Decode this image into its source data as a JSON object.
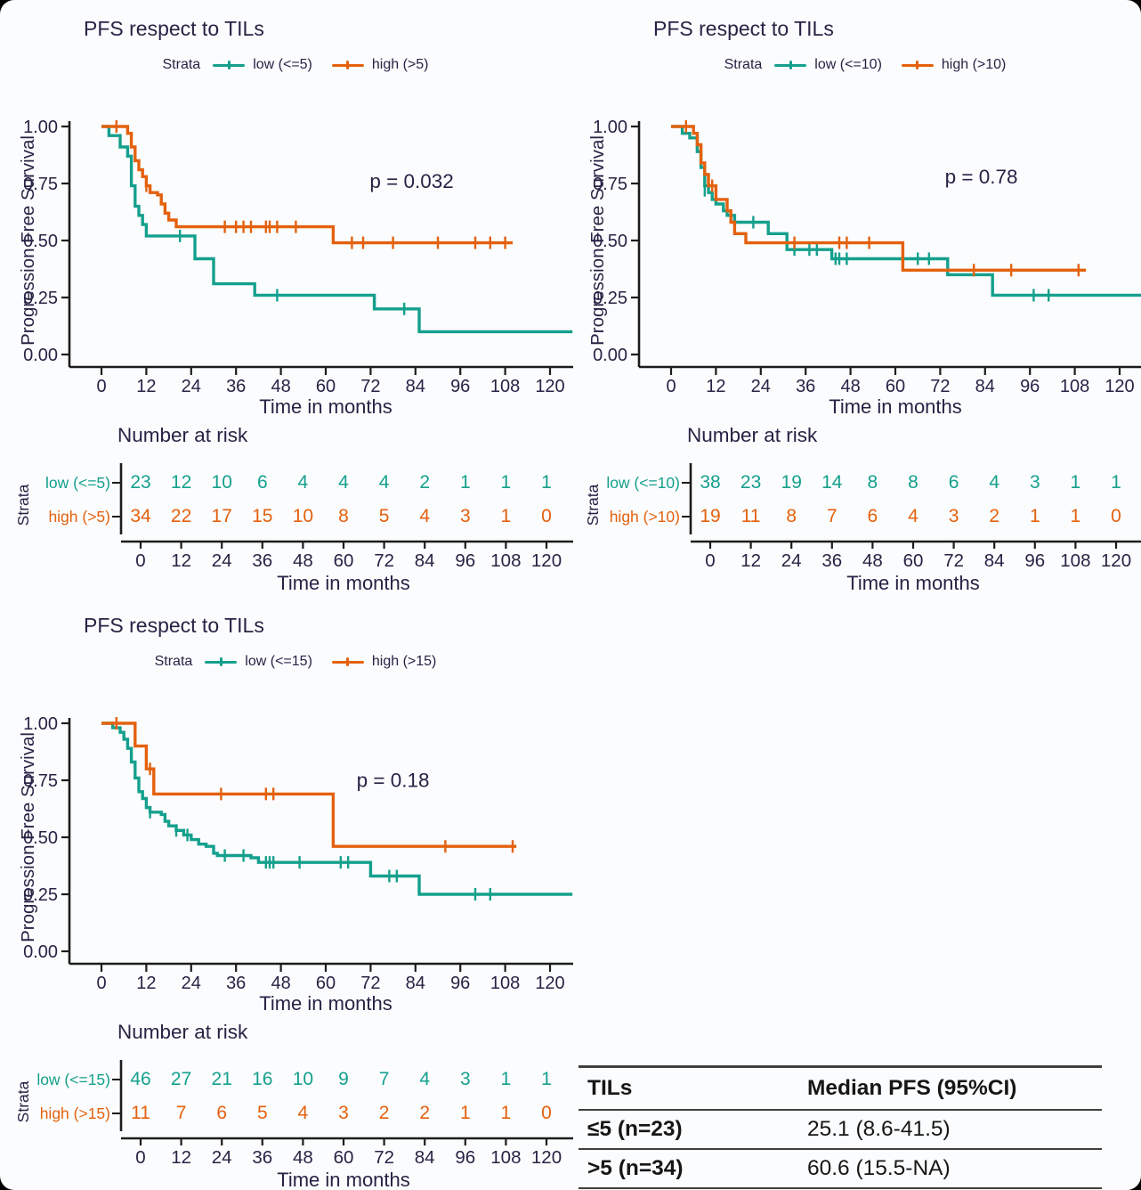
{
  "colors": {
    "low": "#14A08D",
    "high": "#E4610E",
    "text": "#2A2245",
    "axis": "#1C1C1C",
    "table_line": "#3F3F3F"
  },
  "shared": {
    "legend_title": "Strata",
    "risk_header": "Number at risk",
    "strata_axis_label": "Strata",
    "y_label": "Progression Free Survival",
    "x_label": "Time in months",
    "y_ticks": [
      "1.00",
      "0.75",
      "0.50",
      "0.25",
      "0.00"
    ],
    "y_tick_values": [
      1,
      0.75,
      0.5,
      0.25,
      0
    ],
    "x_ticks": [
      0,
      12,
      24,
      36,
      48,
      60,
      72,
      84,
      96,
      108,
      120
    ]
  },
  "chart_data": [
    {
      "type": "line",
      "title": "PFS respect to TILs",
      "p_label": "p = 0.032",
      "p_pos": [
        83,
        0.73
      ],
      "xlabel": "Time in months",
      "ylabel": "Progression Free Survival",
      "xlim": [
        0,
        126
      ],
      "ylim": [
        0,
        1.05
      ],
      "series": [
        {
          "name": "low (<=5)",
          "color_key": "low",
          "n": 23,
          "steps": [
            [
              0,
              1
            ],
            [
              2,
              0.96
            ],
            [
              5,
              0.91
            ],
            [
              7,
              0.87
            ],
            [
              8,
              0.74
            ],
            [
              9,
              0.65
            ],
            [
              10,
              0.61
            ],
            [
              11,
              0.57
            ],
            [
              12,
              0.52
            ],
            [
              24,
              0.52
            ],
            [
              25,
              0.42
            ],
            [
              30,
              0.31
            ],
            [
              41,
              0.26
            ],
            [
              72,
              0.26
            ],
            [
              73,
              0.2
            ],
            [
              84,
              0.2
            ],
            [
              85,
              0.1
            ],
            [
              126,
              0.1
            ]
          ],
          "censors": [
            [
              21,
              0.52
            ],
            [
              47,
              0.26
            ],
            [
              81,
              0.2
            ]
          ]
        },
        {
          "name": "high (>5)",
          "color_key": "high",
          "n": 34,
          "steps": [
            [
              0,
              1
            ],
            [
              7,
              0.97
            ],
            [
              8,
              0.91
            ],
            [
              9,
              0.85
            ],
            [
              10,
              0.81
            ],
            [
              11,
              0.78
            ],
            [
              12,
              0.74
            ],
            [
              13,
              0.71
            ],
            [
              15,
              0.7
            ],
            [
              16,
              0.66
            ],
            [
              17,
              0.62
            ],
            [
              18,
              0.59
            ],
            [
              20,
              0.56
            ],
            [
              61,
              0.56
            ],
            [
              62,
              0.49
            ],
            [
              110,
              0.49
            ]
          ],
          "censors": [
            [
              4,
              1
            ],
            [
              12,
              0.74
            ],
            [
              33,
              0.56
            ],
            [
              36,
              0.56
            ],
            [
              38,
              0.56
            ],
            [
              40,
              0.56
            ],
            [
              44,
              0.56
            ],
            [
              45,
              0.56
            ],
            [
              47,
              0.56
            ],
            [
              52,
              0.56
            ],
            [
              67,
              0.49
            ],
            [
              70,
              0.49
            ],
            [
              78,
              0.49
            ],
            [
              90,
              0.49
            ],
            [
              100,
              0.49
            ],
            [
              104,
              0.49
            ],
            [
              108,
              0.49
            ]
          ]
        }
      ],
      "risk_rows": [
        {
          "label": "low (<=5)",
          "color_key": "low",
          "values": [
            23,
            12,
            10,
            6,
            4,
            4,
            4,
            2,
            1,
            1,
            1
          ]
        },
        {
          "label": "high (>5)",
          "color_key": "high",
          "values": [
            34,
            22,
            17,
            15,
            10,
            8,
            5,
            4,
            3,
            1,
            0
          ]
        }
      ]
    },
    {
      "type": "line",
      "title": "PFS respect to TILs",
      "p_label": "p = 0.78",
      "p_pos": [
        83,
        0.75
      ],
      "xlabel": "Time in months",
      "ylabel": "Progression Free Survival",
      "xlim": [
        0,
        126
      ],
      "ylim": [
        0,
        1.05
      ],
      "series": [
        {
          "name": "low (<=10)",
          "color_key": "low",
          "n": 38,
          "steps": [
            [
              0,
              1
            ],
            [
              3,
              0.97
            ],
            [
              5,
              0.95
            ],
            [
              7,
              0.89
            ],
            [
              8,
              0.82
            ],
            [
              9,
              0.74
            ],
            [
              10,
              0.71
            ],
            [
              11,
              0.68
            ],
            [
              12,
              0.66
            ],
            [
              14,
              0.63
            ],
            [
              15,
              0.61
            ],
            [
              17,
              0.58
            ],
            [
              25,
              0.58
            ],
            [
              26,
              0.53
            ],
            [
              30,
              0.53
            ],
            [
              31,
              0.46
            ],
            [
              42,
              0.46
            ],
            [
              43,
              0.42
            ],
            [
              73,
              0.42
            ],
            [
              74,
              0.35
            ],
            [
              85,
              0.35
            ],
            [
              86,
              0.26
            ],
            [
              126,
              0.26
            ]
          ],
          "censors": [
            [
              9,
              0.72
            ],
            [
              22,
              0.58
            ],
            [
              33,
              0.46
            ],
            [
              37,
              0.46
            ],
            [
              39,
              0.46
            ],
            [
              44,
              0.42
            ],
            [
              45,
              0.42
            ],
            [
              47,
              0.42
            ],
            [
              66,
              0.42
            ],
            [
              69,
              0.42
            ],
            [
              97,
              0.26
            ],
            [
              101,
              0.26
            ]
          ]
        },
        {
          "name": "high (>10)",
          "color_key": "high",
          "n": 19,
          "steps": [
            [
              0,
              1
            ],
            [
              6,
              0.97
            ],
            [
              7,
              0.92
            ],
            [
              8,
              0.84
            ],
            [
              9,
              0.79
            ],
            [
              10,
              0.74
            ],
            [
              12,
              0.68
            ],
            [
              14,
              0.68
            ],
            [
              15,
              0.63
            ],
            [
              16,
              0.58
            ],
            [
              17,
              0.53
            ],
            [
              20,
              0.49
            ],
            [
              61,
              0.49
            ],
            [
              62,
              0.37
            ],
            [
              111,
              0.37
            ]
          ],
          "censors": [
            [
              4,
              1
            ],
            [
              11,
              0.74
            ],
            [
              33,
              0.49
            ],
            [
              45,
              0.49
            ],
            [
              47,
              0.49
            ],
            [
              53,
              0.49
            ],
            [
              81,
              0.37
            ],
            [
              91,
              0.37
            ],
            [
              109,
              0.37
            ]
          ]
        }
      ],
      "risk_rows": [
        {
          "label": "low (<=10)",
          "color_key": "low",
          "values": [
            38,
            23,
            19,
            14,
            8,
            8,
            6,
            4,
            3,
            1,
            1
          ]
        },
        {
          "label": "high (>10)",
          "color_key": "high",
          "values": [
            19,
            11,
            8,
            7,
            6,
            4,
            3,
            2,
            1,
            1,
            0
          ]
        }
      ]
    },
    {
      "type": "line",
      "title": "PFS respect to TILs",
      "p_label": "p = 0.18",
      "p_pos": [
        78,
        0.72
      ],
      "xlabel": "Time in months",
      "ylabel": "Progression Free Survival",
      "xlim": [
        0,
        126
      ],
      "ylim": [
        0,
        1.05
      ],
      "series": [
        {
          "name": "low (<=15)",
          "color_key": "low",
          "n": 46,
          "steps": [
            [
              0,
              1
            ],
            [
              3,
              0.98
            ],
            [
              5,
              0.96
            ],
            [
              6,
              0.93
            ],
            [
              7,
              0.89
            ],
            [
              8,
              0.83
            ],
            [
              9,
              0.76
            ],
            [
              10,
              0.7
            ],
            [
              11,
              0.67
            ],
            [
              12,
              0.63
            ],
            [
              13,
              0.61
            ],
            [
              16,
              0.6
            ],
            [
              17,
              0.57
            ],
            [
              18,
              0.55
            ],
            [
              20,
              0.53
            ],
            [
              22,
              0.51
            ],
            [
              24,
              0.49
            ],
            [
              26,
              0.47
            ],
            [
              28,
              0.46
            ],
            [
              30,
              0.43
            ],
            [
              31,
              0.42
            ],
            [
              39,
              0.42
            ],
            [
              40,
              0.41
            ],
            [
              42,
              0.39
            ],
            [
              71,
              0.39
            ],
            [
              72,
              0.33
            ],
            [
              84,
              0.33
            ],
            [
              85,
              0.25
            ],
            [
              126,
              0.25
            ]
          ],
          "censors": [
            [
              13,
              0.61
            ],
            [
              20,
              0.53
            ],
            [
              23,
              0.51
            ],
            [
              33,
              0.42
            ],
            [
              38,
              0.42
            ],
            [
              44,
              0.39
            ],
            [
              45,
              0.39
            ],
            [
              46,
              0.39
            ],
            [
              53,
              0.39
            ],
            [
              64,
              0.39
            ],
            [
              66,
              0.39
            ],
            [
              77,
              0.33
            ],
            [
              79,
              0.33
            ],
            [
              100,
              0.25
            ],
            [
              104,
              0.25
            ]
          ]
        },
        {
          "name": "high (>15)",
          "color_key": "high",
          "n": 11,
          "steps": [
            [
              0,
              1
            ],
            [
              9,
              0.9
            ],
            [
              12,
              0.8
            ],
            [
              14,
              0.69
            ],
            [
              61,
              0.69
            ],
            [
              62,
              0.46
            ],
            [
              111,
              0.46
            ]
          ],
          "censors": [
            [
              4,
              1
            ],
            [
              13,
              0.8
            ],
            [
              32,
              0.69
            ],
            [
              44,
              0.69
            ],
            [
              46,
              0.69
            ],
            [
              92,
              0.46
            ],
            [
              110,
              0.46
            ]
          ]
        }
      ],
      "risk_rows": [
        {
          "label": "low (<=15)",
          "color_key": "low",
          "values": [
            46,
            27,
            21,
            16,
            10,
            9,
            7,
            4,
            3,
            1,
            1
          ]
        },
        {
          "label": "high (>15)",
          "color_key": "high",
          "values": [
            11,
            7,
            6,
            5,
            4,
            3,
            2,
            2,
            1,
            1,
            0
          ]
        }
      ]
    }
  ],
  "summary_table": {
    "col_headers": [
      "TILs",
      "Median PFS (95%CI)"
    ],
    "rows": [
      {
        "tils": "≤5 (n=23)",
        "median": "25.1 (8.6-41.5)"
      },
      {
        "tils": ">5 (n=34)",
        "median": "60.6 (15.5-NA)"
      }
    ]
  }
}
